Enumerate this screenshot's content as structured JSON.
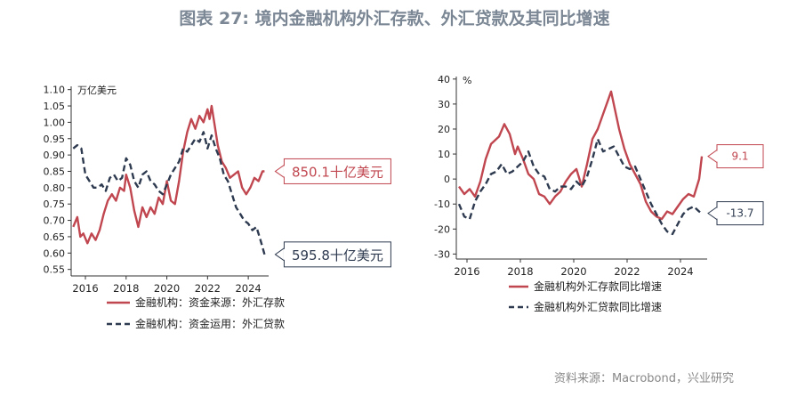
{
  "title": "图表 27: 境内金融机构外汇存款、外汇贷款及其同比增速",
  "source": "资料来源：Macrobond，兴业研究",
  "colors": {
    "deposit": "#c0464f",
    "loan": "#2e3a4f",
    "axis": "#333333"
  },
  "chart_data": [
    {
      "type": "line",
      "unit_label": "万亿美元",
      "x_ticks": [
        2016,
        2018,
        2020,
        2022,
        2024
      ],
      "xlim": [
        2015.3,
        2025.0
      ],
      "y_ticks": [
        "0.55",
        "0.60",
        "0.65",
        "0.70",
        "0.75",
        "0.80",
        "0.85",
        "0.90",
        "0.95",
        "1.00",
        "1.05",
        "1.10"
      ],
      "ylim": [
        0.53,
        1.11
      ],
      "legend_position": "bottom-left",
      "series": [
        {
          "name": "金融机构：资金来源：外汇存款",
          "style": "solid",
          "x": [
            2015.4,
            2015.6,
            2015.75,
            2015.9,
            2016.1,
            2016.3,
            2016.5,
            2016.7,
            2016.9,
            2017.1,
            2017.3,
            2017.5,
            2017.7,
            2017.9,
            2018.0,
            2018.2,
            2018.4,
            2018.6,
            2018.8,
            2019.0,
            2019.2,
            2019.4,
            2019.6,
            2019.8,
            2020.0,
            2020.2,
            2020.4,
            2020.6,
            2020.8,
            2021.0,
            2021.2,
            2021.4,
            2021.6,
            2021.8,
            2022.0,
            2022.1,
            2022.2,
            2022.35,
            2022.5,
            2022.7,
            2022.9,
            2023.1,
            2023.3,
            2023.5,
            2023.7,
            2023.9,
            2024.1,
            2024.3,
            2024.5,
            2024.7,
            2024.8
          ],
          "y": [
            0.68,
            0.71,
            0.65,
            0.66,
            0.63,
            0.66,
            0.64,
            0.67,
            0.72,
            0.76,
            0.78,
            0.76,
            0.8,
            0.79,
            0.84,
            0.8,
            0.73,
            0.68,
            0.74,
            0.71,
            0.74,
            0.72,
            0.77,
            0.75,
            0.82,
            0.76,
            0.75,
            0.82,
            0.91,
            0.97,
            1.01,
            0.98,
            1.02,
            1.0,
            1.04,
            1.01,
            1.05,
            0.99,
            0.93,
            0.88,
            0.86,
            0.83,
            0.84,
            0.85,
            0.8,
            0.78,
            0.8,
            0.83,
            0.82,
            0.85,
            0.8501
          ]
        },
        {
          "name": "金融机构：资金运用：外汇贷款",
          "style": "dashed",
          "x": [
            2015.4,
            2015.6,
            2015.8,
            2016.0,
            2016.2,
            2016.4,
            2016.6,
            2016.8,
            2017.0,
            2017.2,
            2017.4,
            2017.6,
            2017.8,
            2018.0,
            2018.2,
            2018.4,
            2018.6,
            2018.8,
            2019.0,
            2019.2,
            2019.4,
            2019.6,
            2019.8,
            2020.0,
            2020.2,
            2020.4,
            2020.6,
            2020.8,
            2021.0,
            2021.2,
            2021.4,
            2021.6,
            2021.8,
            2022.0,
            2022.2,
            2022.4,
            2022.6,
            2022.8,
            2023.0,
            2023.2,
            2023.4,
            2023.6,
            2023.8,
            2024.0,
            2024.2,
            2024.4,
            2024.6,
            2024.8
          ],
          "y": [
            0.92,
            0.93,
            0.92,
            0.84,
            0.82,
            0.8,
            0.8,
            0.81,
            0.79,
            0.83,
            0.84,
            0.82,
            0.83,
            0.89,
            0.87,
            0.82,
            0.8,
            0.84,
            0.85,
            0.82,
            0.81,
            0.79,
            0.78,
            0.81,
            0.84,
            0.86,
            0.88,
            0.92,
            0.91,
            0.93,
            0.95,
            0.94,
            0.97,
            0.92,
            0.96,
            0.92,
            0.89,
            0.84,
            0.82,
            0.78,
            0.74,
            0.72,
            0.7,
            0.69,
            0.67,
            0.68,
            0.64,
            0.5958
          ]
        }
      ],
      "annotations": [
        {
          "text": "850.1十亿美元",
          "series": 0,
          "x": 2024.8,
          "y": 0.8501
        },
        {
          "text": "595.8十亿美元",
          "series": 1,
          "x": 2024.8,
          "y": 0.5958
        }
      ]
    },
    {
      "type": "line",
      "unit_label": "%",
      "x_ticks": [
        2016,
        2018,
        2020,
        2022,
        2024
      ],
      "xlim": [
        2015.6,
        2025.0
      ],
      "y_ticks": [
        "-30",
        "-20",
        "-10",
        "0",
        "10",
        "20",
        "30",
        "40"
      ],
      "ylim": [
        -32,
        41
      ],
      "legend_position": "bottom",
      "series": [
        {
          "name": "金融机构外汇存款同比增速",
          "style": "solid",
          "x": [
            2015.7,
            2015.9,
            2016.1,
            2016.3,
            2016.5,
            2016.7,
            2016.9,
            2017.0,
            2017.2,
            2017.4,
            2017.6,
            2017.8,
            2017.9,
            2018.1,
            2018.3,
            2018.5,
            2018.7,
            2018.9,
            2019.1,
            2019.3,
            2019.5,
            2019.7,
            2019.9,
            2020.1,
            2020.3,
            2020.5,
            2020.7,
            2020.9,
            2021.1,
            2021.3,
            2021.4,
            2021.5,
            2021.7,
            2021.9,
            2022.1,
            2022.3,
            2022.5,
            2022.7,
            2022.9,
            2023.1,
            2023.3,
            2023.5,
            2023.7,
            2023.9,
            2024.1,
            2024.3,
            2024.5,
            2024.7,
            2024.8
          ],
          "y": [
            -3,
            -6,
            -4,
            -7,
            -1,
            8,
            14,
            15,
            17,
            22,
            18,
            10,
            13,
            8,
            2,
            0,
            -6,
            -7,
            -10,
            -7,
            -5,
            -1,
            2,
            4,
            -3,
            6,
            16,
            20,
            26,
            32,
            35,
            30,
            20,
            12,
            6,
            2,
            -2,
            -9,
            -13,
            -15,
            -16,
            -13,
            -14,
            -11,
            -8,
            -6,
            -7,
            0,
            9.1
          ]
        },
        {
          "name": "金融机构外汇贷款同比增速",
          "style": "dashed",
          "x": [
            2015.7,
            2015.9,
            2016.1,
            2016.3,
            2016.5,
            2016.7,
            2016.9,
            2017.1,
            2017.3,
            2017.5,
            2017.7,
            2017.9,
            2018.1,
            2018.3,
            2018.5,
            2018.7,
            2018.9,
            2019.1,
            2019.3,
            2019.5,
            2019.7,
            2019.9,
            2020.1,
            2020.3,
            2020.5,
            2020.7,
            2020.9,
            2021.1,
            2021.3,
            2021.5,
            2021.7,
            2021.9,
            2022.1,
            2022.3,
            2022.5,
            2022.7,
            2022.9,
            2023.1,
            2023.3,
            2023.5,
            2023.7,
            2023.9,
            2024.1,
            2024.3,
            2024.5,
            2024.7,
            2024.8
          ],
          "y": [
            -10,
            -15,
            -16,
            -9,
            -5,
            -2,
            2,
            3,
            6,
            2,
            3,
            5,
            7,
            11,
            5,
            2,
            1,
            -4,
            -5,
            -3,
            -3,
            -4,
            -1,
            -3,
            1,
            8,
            16,
            11,
            12,
            13,
            9,
            5,
            4,
            5,
            0,
            -5,
            -10,
            -14,
            -18,
            -21,
            -22,
            -18,
            -14,
            -12,
            -11,
            -13,
            -13.7
          ]
        }
      ],
      "annotations": [
        {
          "text": "9.1",
          "series": 0,
          "x": 2024.8,
          "y": 9.1
        },
        {
          "text": "-13.7",
          "series": 1,
          "x": 2024.8,
          "y": -13.7
        }
      ]
    }
  ]
}
